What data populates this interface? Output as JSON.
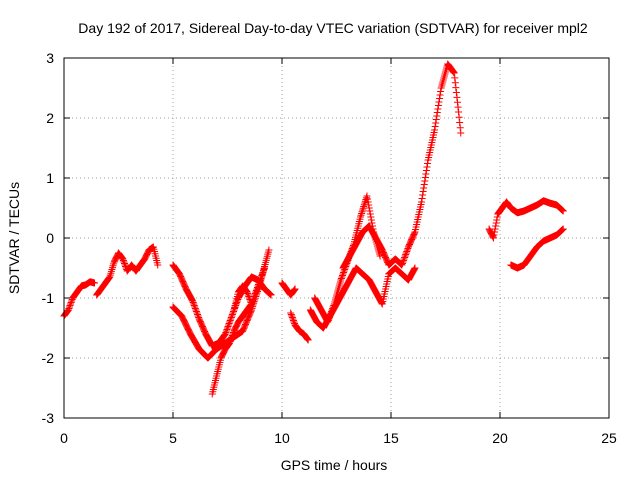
{
  "chart_data": {
    "type": "scatter",
    "title": "Day 192 of 2017, Sidereal Day-to-day VTEC variation (SDTVAR) for receiver mpl2",
    "xlabel": "GPS time / hours",
    "ylabel": "SDTVAR / TECUs",
    "xlim": [
      0,
      25
    ],
    "ylim": [
      -3,
      3
    ],
    "xticks": [
      "0",
      "5",
      "10",
      "15",
      "20",
      "25"
    ],
    "yticks": [
      "3",
      "2",
      "1",
      "0",
      "-1",
      "-2",
      "-3"
    ],
    "grid": true,
    "marker": "+",
    "color": "#ff0000",
    "segments": [
      {
        "x": [
          0.0,
          0.2,
          0.4,
          0.6,
          0.8,
          1.0,
          1.2,
          1.4
        ],
        "y": [
          -1.3,
          -1.2,
          -1.0,
          -0.9,
          -0.8,
          -0.78,
          -0.73,
          -0.75
        ]
      },
      {
        "x": [
          1.5,
          1.7,
          1.9,
          2.1,
          2.3,
          2.5,
          2.7,
          2.9,
          3.1,
          3.3,
          3.5,
          3.7,
          3.9,
          4.1,
          4.3
        ],
        "y": [
          -0.95,
          -0.85,
          -0.75,
          -0.65,
          -0.4,
          -0.25,
          -0.35,
          -0.55,
          -0.45,
          -0.55,
          -0.45,
          -0.35,
          -0.2,
          -0.15,
          -0.45
        ]
      },
      {
        "x": [
          5.0,
          5.3,
          5.6,
          5.9,
          6.2,
          6.5,
          6.8,
          7.1,
          7.4,
          7.7,
          8.0,
          8.3,
          8.6,
          8.9,
          9.2,
          9.5
        ],
        "y": [
          -0.45,
          -0.6,
          -0.85,
          -1.05,
          -1.35,
          -1.6,
          -1.8,
          -1.75,
          -1.6,
          -1.3,
          -1.0,
          -0.8,
          -0.65,
          -0.7,
          -0.85,
          -0.95
        ]
      },
      {
        "x": [
          5.0,
          5.4,
          5.8,
          6.2,
          6.6,
          7.0,
          7.4,
          7.8,
          8.2,
          8.6,
          9.0,
          9.4
        ],
        "y": [
          -1.15,
          -1.3,
          -1.6,
          -1.85,
          -2.0,
          -1.85,
          -1.75,
          -1.65,
          -1.55,
          -1.2,
          -0.75,
          -0.2
        ]
      },
      {
        "x": [
          6.8,
          7.0,
          7.2,
          7.4,
          7.6,
          7.8,
          8.0,
          8.2,
          8.4,
          8.6,
          8.8,
          9.0,
          9.2
        ],
        "y": [
          -2.6,
          -2.3,
          -2.0,
          -1.85,
          -1.75,
          -1.55,
          -1.4,
          -1.3,
          -1.2,
          -1.1,
          -0.9,
          -0.7,
          -0.5
        ]
      },
      {
        "x": [
          7.8,
          8.0,
          8.2,
          8.4,
          8.6
        ],
        "y": [
          -1.2,
          -0.9,
          -0.8,
          -0.9,
          -1.1
        ]
      },
      {
        "x": [
          10.0,
          10.2,
          10.4,
          10.6
        ],
        "y": [
          -0.75,
          -0.85,
          -0.95,
          -0.85
        ]
      },
      {
        "x": [
          10.4,
          10.6,
          10.8,
          11.0,
          11.2
        ],
        "y": [
          -1.25,
          -1.45,
          -1.55,
          -1.6,
          -1.7
        ]
      },
      {
        "x": [
          11.3,
          11.6,
          11.9,
          12.2,
          12.5,
          12.8,
          13.1,
          13.4,
          13.7,
          14.0,
          14.3,
          14.6,
          14.9,
          15.2,
          15.5,
          15.8,
          16.1
        ],
        "y": [
          -1.2,
          -1.4,
          -1.5,
          -1.3,
          -1.1,
          -0.9,
          -0.7,
          -0.5,
          -0.6,
          -0.7,
          -0.9,
          -1.1,
          -0.6,
          -0.5,
          -0.6,
          -0.7,
          -0.5
        ]
      },
      {
        "x": [
          11.5,
          11.8,
          12.1,
          12.4,
          12.7,
          13.0,
          13.3,
          13.6,
          13.9,
          14.2,
          14.5
        ],
        "y": [
          -1.0,
          -1.2,
          -1.4,
          -1.1,
          -0.7,
          -0.4,
          -0.1,
          0.35,
          0.7,
          0.1,
          -0.3
        ]
      },
      {
        "x": [
          12.8,
          13.1,
          13.4,
          13.7,
          14.0,
          14.3,
          14.6,
          14.9,
          15.2,
          15.5,
          15.8,
          16.1,
          16.4,
          16.7,
          17.0,
          17.3,
          17.6,
          17.9,
          18.1,
          18.2
        ],
        "y": [
          -0.5,
          -0.3,
          -0.1,
          0.1,
          0.2,
          0.0,
          -0.2,
          -0.45,
          -0.35,
          -0.45,
          -0.15,
          0.1,
          0.6,
          1.3,
          1.8,
          2.5,
          2.9,
          2.75,
          2.1,
          1.75
        ]
      },
      {
        "x": [
          19.5,
          19.7,
          19.9,
          20.1,
          20.3,
          20.5,
          20.8,
          21.1,
          21.4,
          21.7,
          22.0,
          22.3,
          22.6,
          22.9
        ],
        "y": [
          0.15,
          0.0,
          0.4,
          0.5,
          0.6,
          0.5,
          0.42,
          0.45,
          0.5,
          0.55,
          0.62,
          0.58,
          0.55,
          0.45
        ]
      },
      {
        "x": [
          20.5,
          20.8,
          21.1,
          21.4,
          21.7,
          22.0,
          22.3,
          22.6,
          22.9
        ],
        "y": [
          -0.45,
          -0.5,
          -0.45,
          -0.3,
          -0.15,
          -0.05,
          0.0,
          0.05,
          0.15
        ]
      }
    ]
  }
}
